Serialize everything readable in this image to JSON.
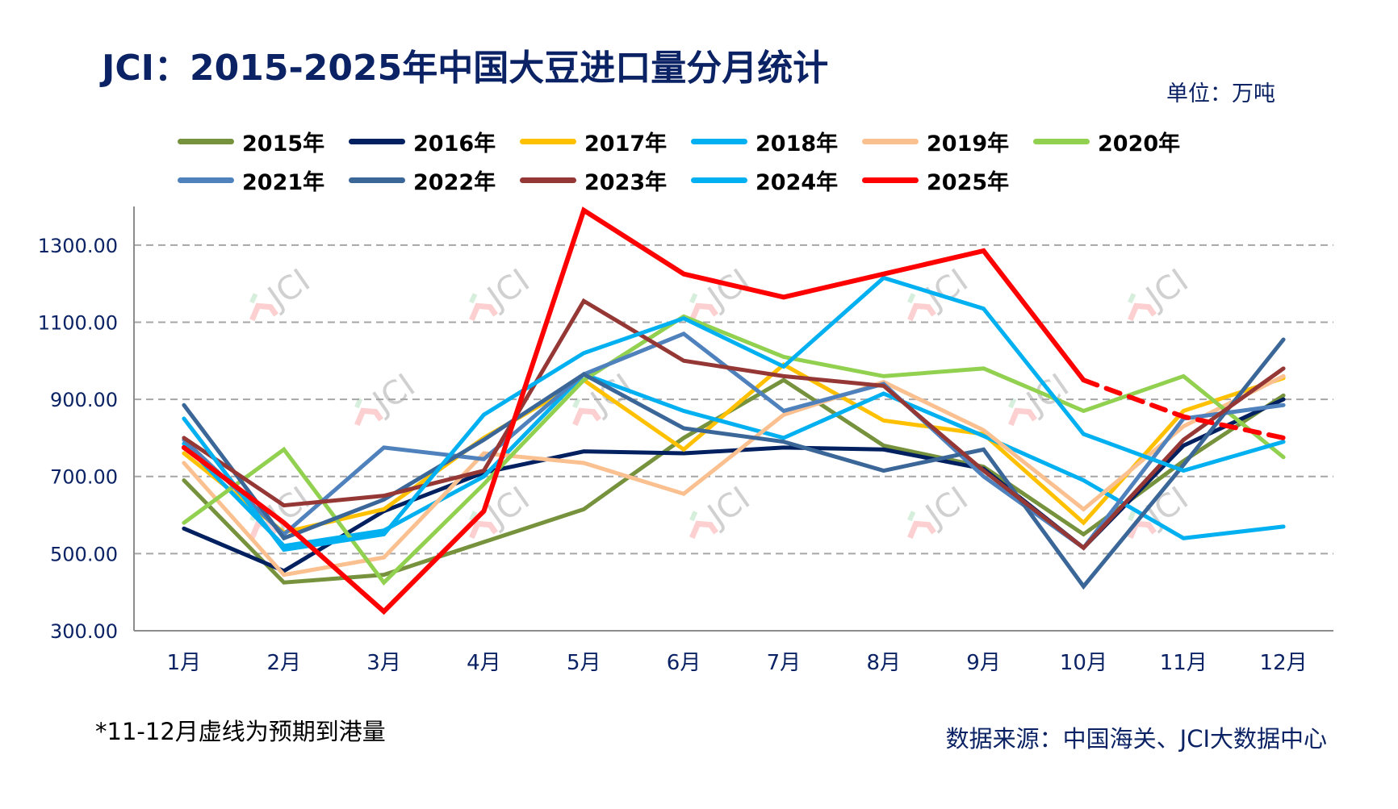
{
  "header": {
    "title": "JCI：2015-2025年中国大豆进口量分月统计",
    "unit": "单位：万吨"
  },
  "footer": {
    "footnote": "*11-12月虚线为预期到港量",
    "source": "数据来源：中国海关、JCI大数据中心"
  },
  "watermark": "JCI",
  "chart_data": {
    "type": "line",
    "title": "JCI：2015-2025年中国大豆进口量分月统计",
    "xlabel": "",
    "ylabel": "单位：万吨",
    "categories": [
      "1月",
      "2月",
      "3月",
      "4月",
      "5月",
      "6月",
      "7月",
      "8月",
      "9月",
      "10月",
      "11月",
      "12月"
    ],
    "yticks": [
      "300.00",
      "500.00",
      "700.00",
      "900.00",
      "1100.00",
      "1300.00"
    ],
    "ytick_values": [
      300,
      500,
      700,
      900,
      1100,
      1300
    ],
    "ylim": [
      300,
      1400
    ],
    "grid": true,
    "legend_position": "top",
    "series": [
      {
        "name": "2015年",
        "color": "#76923c",
        "values": [
          690,
          425,
          445,
          530,
          615,
          800,
          950,
          780,
          725,
          550,
          740,
          910
        ]
      },
      {
        "name": "2016年",
        "color": "#002060",
        "values": [
          565,
          455,
          610,
          710,
          765,
          760,
          775,
          770,
          720,
          515,
          780,
          900
        ]
      },
      {
        "name": "2017年",
        "color": "#ffc000",
        "values": [
          760,
          555,
          615,
          800,
          950,
          770,
          990,
          845,
          810,
          580,
          870,
          955
        ]
      },
      {
        "name": "2018年",
        "color": "#00b0f0",
        "values": [
          785,
          520,
          560,
          700,
          965,
          870,
          800,
          915,
          805,
          690,
          540,
          570
        ]
      },
      {
        "name": "2019年",
        "color": "#fac090",
        "values": [
          735,
          445,
          490,
          760,
          735,
          655,
          860,
          945,
          820,
          615,
          830,
          960
        ]
      },
      {
        "name": "2020年",
        "color": "#92d050",
        "values": [
          580,
          770,
          425,
          680,
          950,
          1115,
          1010,
          960,
          980,
          870,
          960,
          750
        ]
      },
      {
        "name": "2021年",
        "color": "#4f81bd",
        "values": [
          795,
          550,
          775,
          745,
          965,
          1070,
          870,
          940,
          700,
          515,
          850,
          885
        ]
      },
      {
        "name": "2022年",
        "color": "#3a6698",
        "values": [
          885,
          540,
          640,
          795,
          965,
          825,
          790,
          715,
          770,
          415,
          730,
          1055
        ]
      },
      {
        "name": "2023年",
        "color": "#953735",
        "values": [
          800,
          625,
          650,
          715,
          1155,
          1000,
          960,
          935,
          715,
          515,
          795,
          980
        ]
      },
      {
        "name": "2024年",
        "color": "#00b0f0",
        "values": [
          850,
          510,
          550,
          860,
          1020,
          1110,
          985,
          1215,
          1135,
          810,
          715,
          790
        ]
      },
      {
        "name": "2025年",
        "color": "#ff0000",
        "values": [
          775,
          580,
          350,
          610,
          1390,
          1225,
          1165,
          1225,
          1285,
          950,
          855,
          800
        ],
        "dashed_from_index": 9
      }
    ],
    "annotations": [
      "*11-12月虚线为预期到港量"
    ]
  }
}
